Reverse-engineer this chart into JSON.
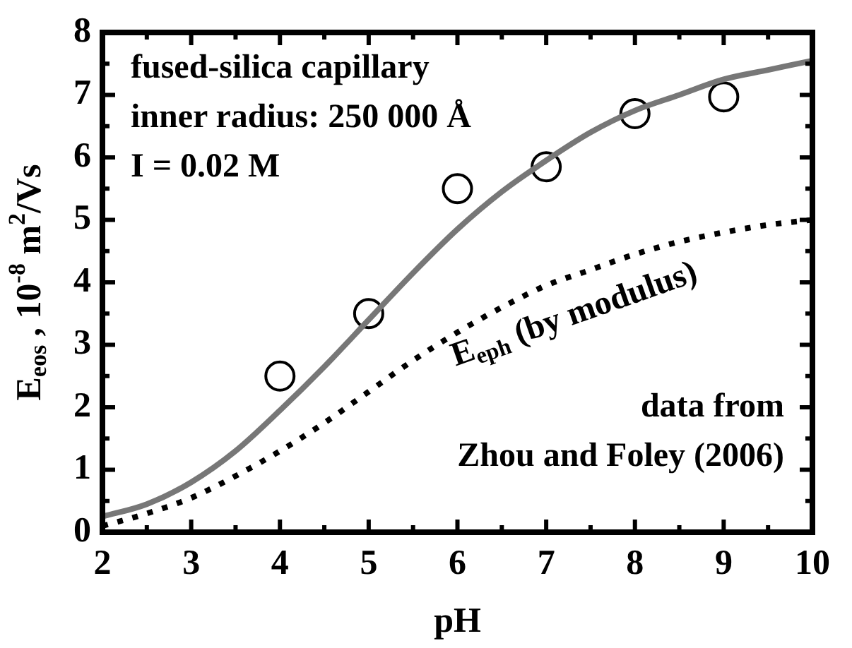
{
  "chart_data": {
    "type": "line",
    "xlabel": "pH",
    "ylabel": "E$_{eos}$ , 10$^{-8}$ m$^{2}$/Vs",
    "xlim": [
      2,
      10
    ],
    "ylim": [
      0,
      8
    ],
    "xticks": [
      2,
      {
        "value": 2.5,
        "label": null
      },
      3,
      {
        "value": 3.5,
        "label": null
      },
      4,
      {
        "value": 4.5,
        "label": null
      },
      5,
      {
        "value": 5.5,
        "label": null
      },
      6,
      {
        "value": 6.5,
        "label": null
      },
      7,
      {
        "value": 7.5,
        "label": null
      },
      8,
      {
        "value": 8.5,
        "label": null
      },
      9,
      {
        "value": 9.5,
        "label": null
      },
      10
    ],
    "yticks": [
      0,
      {
        "value": 0.5,
        "label": null
      },
      1,
      {
        "value": 1.5,
        "label": null
      },
      2,
      {
        "value": 2.5,
        "label": null
      },
      3,
      {
        "value": 3.5,
        "label": null
      },
      4,
      {
        "value": 4.5,
        "label": null
      },
      5,
      {
        "value": 5.5,
        "label": null
      },
      6,
      {
        "value": 6.5,
        "label": null
      },
      7,
      {
        "value": 7.5,
        "label": null
      },
      8
    ],
    "grid": false,
    "legend": false,
    "annotations": [
      "fused-silica capillary",
      "inner radius: 250 000 Å",
      "I = 0.02 M",
      "data from",
      "Zhou and Foley (2006)"
    ],
    "series": [
      {
        "color": "#777777",
        "line_style": "solid",
        "marker": "none",
        "x": [
          2,
          2.5,
          3,
          3.5,
          4,
          4.5,
          5,
          5.5,
          6,
          6.5,
          7,
          7.5,
          8,
          8.5,
          9,
          9.5,
          10
        ],
        "values": [
          0.25,
          0.45,
          0.8,
          1.3,
          1.95,
          2.65,
          3.4,
          4.15,
          4.85,
          5.45,
          5.95,
          6.4,
          6.75,
          7.0,
          7.25,
          7.4,
          7.55
        ]
      },
      {
        "type": "scatter",
        "color": "#000000",
        "marker": "circle",
        "x": [
          4,
          5,
          6,
          7,
          8,
          9
        ],
        "values": [
          2.5,
          3.5,
          5.5,
          5.85,
          6.7,
          6.97
        ]
      },
      {
        "name": "E$_{eph}$ (by modulus)",
        "color": "#000000",
        "line_style": "dotted",
        "marker": "none",
        "x": [
          2,
          2.5,
          3,
          3.5,
          4,
          4.5,
          5,
          5.5,
          6,
          6.5,
          7,
          7.5,
          8,
          8.5,
          9,
          9.5,
          10
        ],
        "values": [
          0.1,
          0.3,
          0.55,
          0.9,
          1.3,
          1.75,
          2.25,
          2.75,
          3.2,
          3.6,
          3.95,
          4.2,
          4.45,
          4.65,
          4.8,
          4.92,
          5.0
        ]
      }
    ]
  }
}
